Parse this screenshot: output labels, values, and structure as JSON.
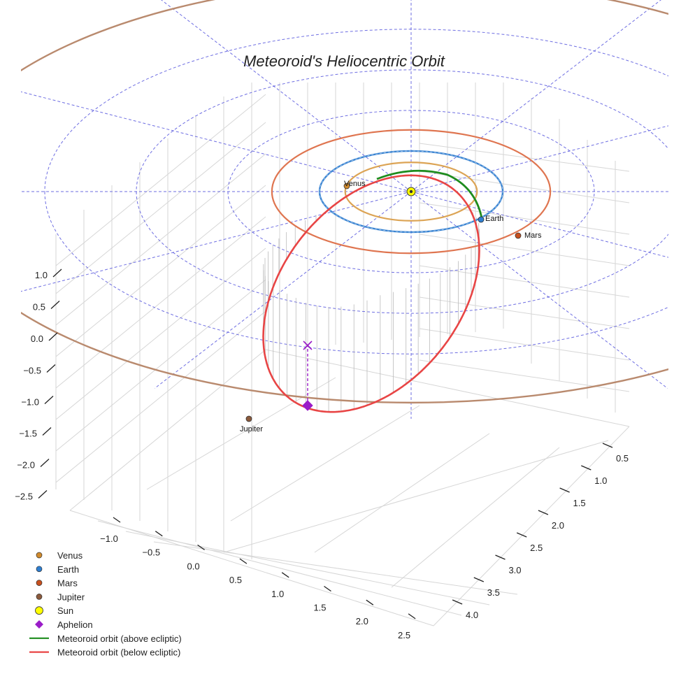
{
  "chart_data": {
    "type": "3d-orbit",
    "title": "Meteoroid's Heliocentric Orbit",
    "axes": {
      "x_ticks": [
        "−1.0",
        "−0.5",
        "0.0",
        "0.5",
        "1.0",
        "1.5",
        "2.0",
        "2.5"
      ],
      "y_ticks": [
        "0.5",
        "1.0",
        "1.5",
        "2.0",
        "2.5",
        "3.0",
        "3.5",
        "4.0"
      ],
      "z_ticks": [
        "1.0",
        "0.5",
        "0.0",
        "−0.5",
        "−1.0",
        "−1.5",
        "−2.0",
        "−2.5"
      ],
      "z_range": [
        -2.5,
        1.0
      ]
    },
    "bodies": [
      {
        "name": "Venus",
        "orbit_radius_au": 0.72,
        "color": "#d08a2c"
      },
      {
        "name": "Earth",
        "orbit_radius_au": 1.0,
        "color": "#2f7fd0"
      },
      {
        "name": "Mars",
        "orbit_radius_au": 1.52,
        "color": "#c8501e"
      },
      {
        "name": "Jupiter",
        "orbit_radius_au": 5.2,
        "color": "#8b5a3c"
      }
    ],
    "sun": {
      "name": "Sun",
      "color": "#ffff00"
    },
    "aphelion": {
      "name": "Aphelion",
      "color": "#9a1cc8"
    },
    "orbit_colors": {
      "venus": "#dca455",
      "earth": "#3a84d2",
      "mars": "#df7550",
      "jupiter": "#b98a6e",
      "above": "#1e8c1e",
      "below": "#e84545",
      "grid": "#5555dd"
    },
    "legend": [
      {
        "label": "Venus",
        "kind": "dot",
        "color": "#d08a2c"
      },
      {
        "label": "Earth",
        "kind": "dot",
        "color": "#2f7fd0"
      },
      {
        "label": "Mars",
        "kind": "dot",
        "color": "#c8501e"
      },
      {
        "label": "Jupiter",
        "kind": "dot",
        "color": "#8b5a3c"
      },
      {
        "label": "Sun",
        "kind": "sun",
        "color": "#ffff00"
      },
      {
        "label": "Aphelion",
        "kind": "diamond",
        "color": "#9a1cc8"
      },
      {
        "label": "Meteoroid orbit (above ecliptic)",
        "kind": "line",
        "color": "#1e8c1e"
      },
      {
        "label": "Meteoroid orbit (below ecliptic)",
        "kind": "line",
        "color": "#e84545"
      }
    ]
  }
}
